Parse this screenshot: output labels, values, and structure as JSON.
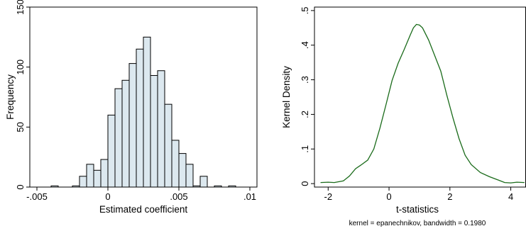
{
  "chart_data": [
    {
      "type": "bar",
      "subtype": "histogram",
      "xlabel": "Estimated coefficient",
      "ylabel": "Frequency",
      "xlim": [
        -0.0055,
        0.0105
      ],
      "ylim": [
        0,
        150
      ],
      "bin_width": 0.0005,
      "x_ticks": [
        {
          "value": -0.005,
          "label": "-.005"
        },
        {
          "value": 0,
          "label": "0"
        },
        {
          "value": 0.005,
          "label": ".005"
        },
        {
          "value": 0.01,
          "label": ".01"
        }
      ],
      "y_ticks": [
        {
          "value": 0,
          "label": "0"
        },
        {
          "value": 50,
          "label": "50"
        },
        {
          "value": 100,
          "label": "100"
        },
        {
          "value": 150,
          "label": "150"
        }
      ],
      "bins": [
        {
          "x0": -0.004,
          "value": 1
        },
        {
          "x0": -0.0025,
          "value": 1
        },
        {
          "x0": -0.002,
          "value": 9
        },
        {
          "x0": -0.0015,
          "value": 19
        },
        {
          "x0": -0.001,
          "value": 14
        },
        {
          "x0": -0.0005,
          "value": 23
        },
        {
          "x0": 0,
          "value": 60
        },
        {
          "x0": 0.0005,
          "value": 82
        },
        {
          "x0": 0.001,
          "value": 89
        },
        {
          "x0": 0.0015,
          "value": 103
        },
        {
          "x0": 0.002,
          "value": 115
        },
        {
          "x0": 0.0025,
          "value": 125
        },
        {
          "x0": 0.003,
          "value": 93
        },
        {
          "x0": 0.0035,
          "value": 97
        },
        {
          "x0": 0.004,
          "value": 69
        },
        {
          "x0": 0.0045,
          "value": 39
        },
        {
          "x0": 0.005,
          "value": 28
        },
        {
          "x0": 0.0055,
          "value": 19
        },
        {
          "x0": 0.006,
          "value": 1
        },
        {
          "x0": 0.0065,
          "value": 9
        },
        {
          "x0": 0.0075,
          "value": 1
        },
        {
          "x0": 0.0085,
          "value": 1
        }
      ],
      "bar_fill": "#dce8ef",
      "bar_stroke": "#000000"
    },
    {
      "type": "line",
      "xlabel": "t-statistics",
      "ylabel": "Kernel Density",
      "note": "kernel = epanechnikov, bandwidth = 0.1980",
      "xlim": [
        -2.45,
        4.5
      ],
      "ylim": [
        -0.01,
        0.51
      ],
      "x_ticks": [
        {
          "value": -2,
          "label": "-2"
        },
        {
          "value": 0,
          "label": "0"
        },
        {
          "value": 2,
          "label": "2"
        },
        {
          "value": 4,
          "label": "4"
        }
      ],
      "y_ticks": [
        {
          "value": 0,
          "label": "0"
        },
        {
          "value": 0.1,
          "label": ".1"
        },
        {
          "value": 0.2,
          "label": ".2"
        },
        {
          "value": 0.3,
          "label": ".3"
        },
        {
          "value": 0.4,
          "label": ".4"
        },
        {
          "value": 0.5,
          "label": ".5"
        }
      ],
      "line_color": "#1a6b1a",
      "x": [
        -2.25,
        -2.0,
        -1.8,
        -1.5,
        -1.3,
        -1.1,
        -0.9,
        -0.7,
        -0.5,
        -0.3,
        -0.1,
        0.1,
        0.3,
        0.5,
        0.7,
        0.8,
        0.9,
        1.0,
        1.1,
        1.3,
        1.5,
        1.7,
        1.9,
        2.1,
        2.3,
        2.5,
        2.7,
        3.0,
        3.3,
        3.6,
        3.8,
        4.0,
        4.2,
        4.45
      ],
      "y": [
        0.003,
        0.004,
        0.003,
        0.008,
        0.022,
        0.043,
        0.055,
        0.068,
        0.1,
        0.16,
        0.228,
        0.298,
        0.348,
        0.388,
        0.43,
        0.45,
        0.46,
        0.458,
        0.45,
        0.415,
        0.37,
        0.325,
        0.255,
        0.19,
        0.13,
        0.082,
        0.055,
        0.032,
        0.02,
        0.01,
        0.003,
        0.002,
        0.004,
        0.003
      ]
    }
  ]
}
